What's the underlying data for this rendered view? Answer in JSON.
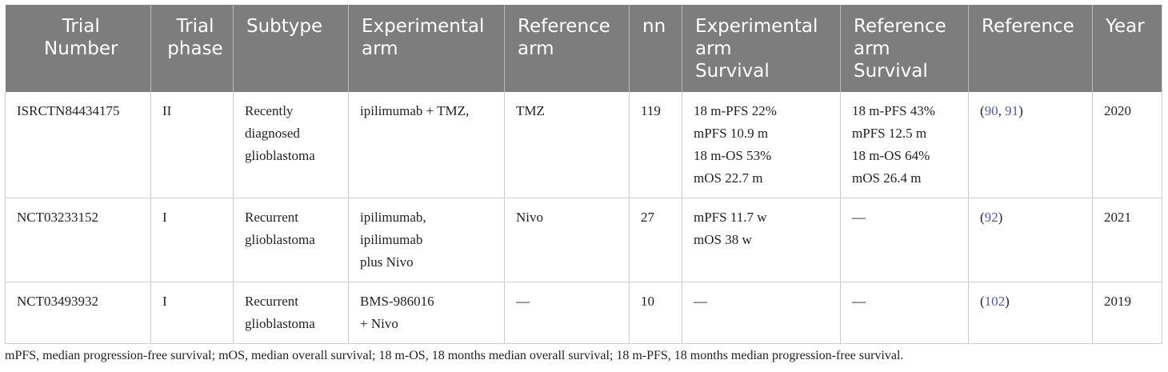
{
  "headers": [
    [
      "Trial",
      "Number"
    ],
    [
      "Trial",
      "phase"
    ],
    [
      "Subtype"
    ],
    [
      "Experimental",
      "arm"
    ],
    [
      "Reference",
      "arm"
    ],
    [
      "nn"
    ],
    [
      "Experimental",
      "arm",
      "Survival"
    ],
    [
      "Reference",
      "arm",
      "Survival"
    ],
    [
      "Reference"
    ],
    [
      "Year"
    ]
  ],
  "rows": [
    {
      "trial_number": "ISRCTN84434175",
      "phase": "II",
      "subtype": [
        "Recently",
        "diagnosed",
        "glioblastoma"
      ],
      "experimental_arm": [
        "ipilimumab + TMZ,"
      ],
      "reference_arm": [
        "TMZ"
      ],
      "n": "119",
      "exp_survival": [
        "18 m-PFS 22%",
        "mPFS 10.9 m",
        "18 m-OS 53%",
        "mOS 22.7 m"
      ],
      "ref_survival": [
        "18 m-PFS 43%",
        "mPFS 12.5 m",
        "18 m-OS 64%",
        "mOS 26.4 m"
      ],
      "reference": {
        "open": "(",
        "refs": [
          "90",
          "91"
        ],
        "sep": ", ",
        "close": ")"
      },
      "year": "2020"
    },
    {
      "trial_number": "NCT03233152",
      "phase": "I",
      "subtype": [
        "Recurrent",
        "glioblastoma"
      ],
      "experimental_arm": [
        "ipilimumab,",
        "ipilimumab",
        "plus Nivo"
      ],
      "reference_arm": [
        "Nivo"
      ],
      "n": "27",
      "exp_survival": [
        "mPFS 11.7 w",
        "mOS 38 w"
      ],
      "ref_survival": [
        "—"
      ],
      "reference": {
        "open": "(",
        "refs": [
          "92"
        ],
        "sep": "",
        "close": ")"
      },
      "year": "2021"
    },
    {
      "trial_number": "NCT03493932",
      "phase": "I",
      "subtype": [
        "Recurrent",
        "glioblastoma"
      ],
      "experimental_arm": [
        "BMS-986016",
        "+ Nivo"
      ],
      "reference_arm": [
        "—"
      ],
      "n": "10",
      "exp_survival": [
        "—"
      ],
      "ref_survival": [
        "—"
      ],
      "reference": {
        "open": "(",
        "refs": [
          "102"
        ],
        "sep": "",
        "close": ")"
      },
      "year": "2019"
    }
  ],
  "footnote": "mPFS, median progression-free survival; mOS, median overall survival; 18 m-OS, 18 months median overall survival; 18 m-PFS, 18 months median progression-free survival."
}
